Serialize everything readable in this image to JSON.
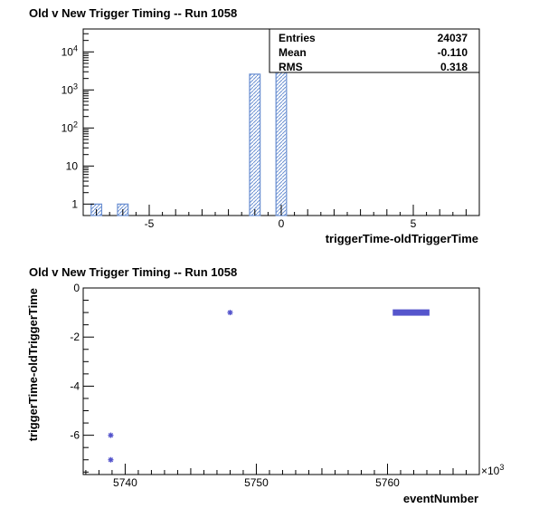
{
  "chart_data": [
    {
      "type": "bar",
      "title": "Old v New Trigger Timing -- Run 1058",
      "xlabel": "triggerTime-oldTriggerTime",
      "ylabel": "",
      "yscale": "log",
      "xlim": [
        -7.5,
        7.5
      ],
      "ylim": [
        0.5,
        40000
      ],
      "x_ticks": [
        -5,
        0,
        5
      ],
      "x_tick_labels": [
        "-5",
        "0",
        "5"
      ],
      "y_ticks": [
        1,
        10,
        100,
        1000,
        10000
      ],
      "y_tick_labels": [
        {
          "base": "1",
          "exp": ""
        },
        {
          "base": "10",
          "exp": ""
        },
        {
          "base": "10",
          "exp": "2"
        },
        {
          "base": "10",
          "exp": "3"
        },
        {
          "base": "10",
          "exp": "4"
        }
      ],
      "bins": [
        {
          "x": -7,
          "value": 1
        },
        {
          "x": -6,
          "value": 1
        },
        {
          "x": -1,
          "value": 2600
        },
        {
          "x": 0,
          "value": 21430
        }
      ],
      "bar_color": "#6a8fd1",
      "stats": [
        {
          "label": "Entries",
          "value": "24037"
        },
        {
          "label": "Mean",
          "value": "-0.110"
        },
        {
          "label": "RMS",
          "value": "0.318"
        }
      ]
    },
    {
      "type": "scatter",
      "title": "Old v New Trigger Timing -- Run 1058",
      "xlabel": "eventNumber",
      "ylabel": "triggerTime-oldTriggerTime",
      "x_unit_label": "×10",
      "x_unit_exp": "3",
      "xlim": [
        5736.8,
        5767
      ],
      "ylim": [
        -7.6,
        0
      ],
      "x_ticks": [
        5740,
        5750,
        5760
      ],
      "x_tick_labels": [
        "5740",
        "5750",
        "5760"
      ],
      "y_ticks": [
        0,
        -2,
        -4,
        -6
      ],
      "y_tick_labels": [
        "0",
        "-2",
        "-4",
        "-6"
      ],
      "points": [
        {
          "x": 5738.9,
          "y": -6
        },
        {
          "x": 5738.9,
          "y": -7
        },
        {
          "x": 5748.0,
          "y": -1
        }
      ],
      "band": {
        "x_start": 5760.4,
        "x_end": 5763.2,
        "y": -1
      },
      "marker_color": "#5555cc"
    }
  ]
}
